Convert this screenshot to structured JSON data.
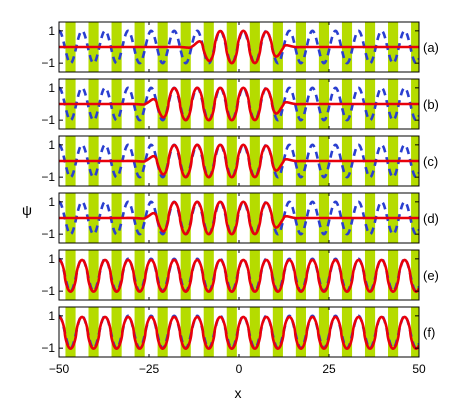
{
  "chart_data": {
    "type": "line",
    "xlabel": "x",
    "ylabel": "ψ",
    "xlim": [
      -50,
      50
    ],
    "ylim": [
      -1.3,
      1.3
    ],
    "xticks": [
      -50,
      -25,
      0,
      25,
      50
    ],
    "xtick_labels": [
      "−50",
      "−25",
      "0",
      "25",
      "50"
    ],
    "yticks": [
      1,
      -1
    ],
    "ytick_labels": [
      "1",
      "−1"
    ],
    "period": 6.4,
    "lattice_bands": {
      "color": "#b5dc00",
      "width_fraction": 0.44
    },
    "background_wave": {
      "style": "dashed",
      "color": "#2a3fd0",
      "amplitude": 1
    },
    "panels": [
      {
        "label": "(a)",
        "core_start": -10.5,
        "core_end": 11.0,
        "edge_amp": 0.3,
        "core_amp": 1.0,
        "start_phase": "dip"
      },
      {
        "label": "(b)",
        "core_start": -23.0,
        "core_end": 11.0,
        "edge_amp": 0.3,
        "core_amp": 1.0,
        "start_phase": "dip"
      },
      {
        "label": "(c)",
        "core_start": -23.0,
        "core_end": 11.0,
        "edge_amp": 0.3,
        "core_amp": 1.0,
        "start_phase": "dip"
      },
      {
        "label": "(d)",
        "core_start": -23.0,
        "core_end": 11.0,
        "edge_amp": 0.3,
        "core_amp": 1.0,
        "start_phase": "dip"
      },
      {
        "label": "(e)",
        "core_start": -50.0,
        "core_end": 50.0,
        "edge_amp": 0.3,
        "core_amp": 1.0,
        "start_phase": "dip"
      },
      {
        "label": "(f)",
        "core_start": -50.0,
        "core_end": 50.0,
        "edge_amp": 0.3,
        "core_amp": 1.0,
        "start_phase": "dip"
      }
    ],
    "solution_wave": {
      "color": "#e8000b"
    }
  }
}
